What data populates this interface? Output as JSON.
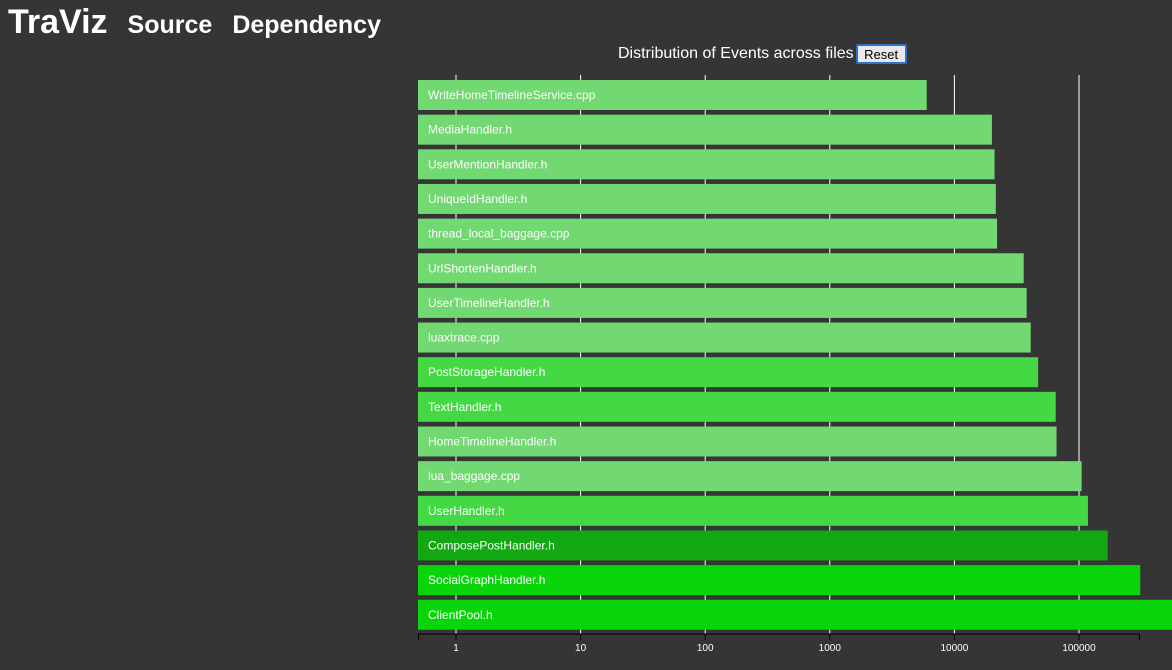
{
  "header": {
    "brand": "TraViz",
    "nav": [
      "Source",
      "Dependency"
    ]
  },
  "controls": {
    "reset_label": "Reset"
  },
  "colors": {
    "background": "#353535",
    "light": "#72d872",
    "medium": "#44d844",
    "bright": "#0ad40a",
    "dark": "#11a811",
    "gridline": "#ffffff"
  },
  "chart_data": {
    "type": "bar",
    "orientation": "horizontal",
    "title": "Distribution of Events across files",
    "xlabel": "",
    "ylabel": "",
    "xscale": "log",
    "xlim": [
      0.5,
      600000
    ],
    "xticks": [
      1,
      10,
      100,
      1000,
      10000,
      100000
    ],
    "xtick_labels": [
      "1",
      "10",
      "100",
      "1000",
      "10000",
      "100000"
    ],
    "grid": true,
    "categories": [
      "WriteHomeTimelineService.cpp",
      "MediaHandler.h",
      "UserMentionHandler.h",
      "UniqueIdHandler.h",
      "thread_local_baggage.cpp",
      "UrlShortenHandler.h",
      "UserTimelineHandler.h",
      "luaxtrace.cpp",
      "PostStorageHandler.h",
      "TextHandler.h",
      "HomeTimelineHandler.h",
      "lua_baggage.cpp",
      "UserHandler.h",
      "ComposePostHandler.h",
      "SocialGraphHandler.h",
      "ClientPool.h"
    ],
    "values": [
      6000,
      20000,
      21000,
      21500,
      22000,
      36000,
      38000,
      41000,
      47000,
      65000,
      66000,
      105000,
      118000,
      170000,
      310000,
      560000
    ],
    "bar_colors": [
      "#72d872",
      "#72d872",
      "#72d872",
      "#72d872",
      "#72d872",
      "#72d872",
      "#72d872",
      "#72d872",
      "#44d844",
      "#44d844",
      "#72d872",
      "#72d872",
      "#44d844",
      "#11a811",
      "#0ad40a",
      "#0ad40a"
    ]
  }
}
